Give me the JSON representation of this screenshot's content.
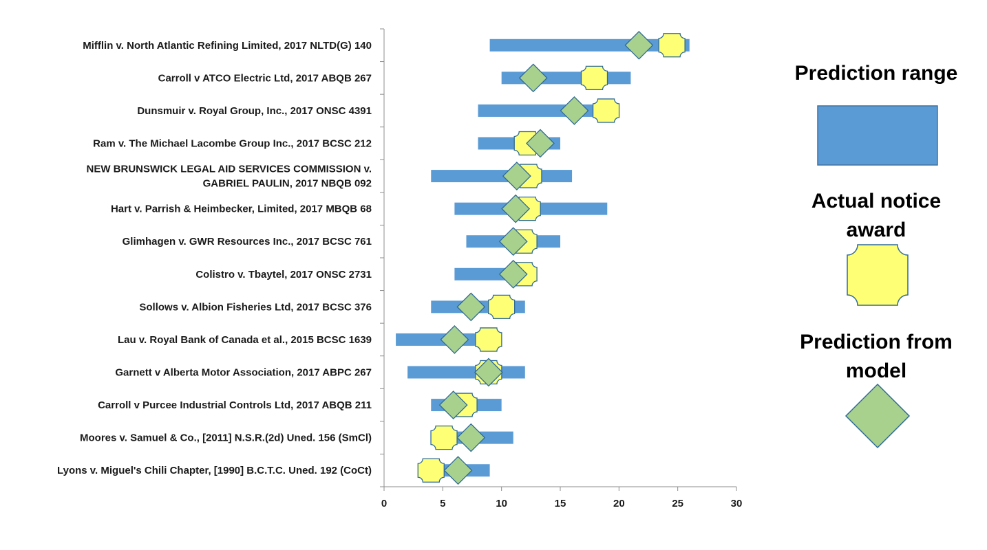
{
  "chart_data": {
    "type": "range-bar",
    "xlim": [
      0,
      30
    ],
    "x_ticks": [
      "0",
      "5",
      "10",
      "15",
      "20",
      "25",
      "30"
    ],
    "grid": false,
    "legend_position": "right",
    "colors": {
      "range": "#5b9bd5",
      "range_stroke": "#41719c",
      "actual": "#ffff75",
      "actual_stroke": "#2e6a97",
      "predicted": "#a9d18e",
      "predicted_stroke": "#2e6a97"
    },
    "legend": {
      "range": "Prediction range",
      "actual": [
        "Actual notice",
        "award"
      ],
      "predicted": [
        "Prediction from",
        "model"
      ]
    },
    "cases": [
      {
        "label": [
          "Mifflin v. North Atlantic Refining Limited, 2017 NLTD(G) 140"
        ],
        "range": [
          9,
          26
        ],
        "actual": 24.5,
        "predicted": 21.7
      },
      {
        "label": [
          "Carroll v ATCO Electric Ltd, 2017 ABQB 267"
        ],
        "range": [
          10,
          21
        ],
        "actual": 17.9,
        "predicted": 12.7
      },
      {
        "label": [
          "Dunsmuir v. Royal Group, Inc., 2017 ONSC 4391"
        ],
        "range": [
          8,
          20
        ],
        "actual": 18.9,
        "predicted": 16.2
      },
      {
        "label": [
          "Ram v. The Michael Lacombe Group Inc., 2017 BCSC 212"
        ],
        "range": [
          8,
          15
        ],
        "actual": 12.2,
        "predicted": 13.3
      },
      {
        "label": [
          "NEW BRUNSWICK LEGAL AID SERVICES COMMISSION v.",
          "GABRIEL PAULIN, 2017 NBQB 092"
        ],
        "range": [
          4,
          16
        ],
        "actual": 12.3,
        "predicted": 11.3
      },
      {
        "label": [
          "Hart v. Parrish & Heimbecker, Limited, 2017 MBQB 68"
        ],
        "range": [
          6,
          19
        ],
        "actual": 12.2,
        "predicted": 11.2
      },
      {
        "label": [
          "Glimhagen v. GWR Resources Inc., 2017 BCSC 761"
        ],
        "range": [
          7,
          15
        ],
        "actual": 11.9,
        "predicted": 11.0
      },
      {
        "label": [
          "Colistro v. Tbaytel, 2017 ONSC 2731"
        ],
        "range": [
          6,
          13
        ],
        "actual": 11.9,
        "predicted": 11.0
      },
      {
        "label": [
          "Sollows v. Albion Fisheries Ltd, 2017 BCSC 376"
        ],
        "range": [
          4,
          12
        ],
        "actual": 10.0,
        "predicted": 7.4
      },
      {
        "label": [
          "Lau v. Royal Bank of Canada et al., 2015 BCSC 1639"
        ],
        "range": [
          1,
          10
        ],
        "actual": 8.9,
        "predicted": 6.0
      },
      {
        "label": [
          "Garnett v Alberta Motor Association, 2017 ABPC 267"
        ],
        "range": [
          2,
          12
        ],
        "actual": 8.9,
        "predicted": 8.9
      },
      {
        "label": [
          "Carroll v Purcee Industrial Controls Ltd, 2017 ABQB 211"
        ],
        "range": [
          4,
          10
        ],
        "actual": 6.8,
        "predicted": 5.9
      },
      {
        "label": [
          "Moores v. Samuel & Co., [2011] N.S.R.(2d) Uned. 156 (SmCl)"
        ],
        "range": [
          4,
          11
        ],
        "actual": 5.1,
        "predicted": 7.4
      },
      {
        "label": [
          "Lyons v. Miguel's Chili Chapter, [1990] B.C.T.C. Uned. 192 (CoCt)"
        ],
        "range": [
          4,
          9
        ],
        "actual": 4.0,
        "predicted": 6.3
      }
    ]
  }
}
